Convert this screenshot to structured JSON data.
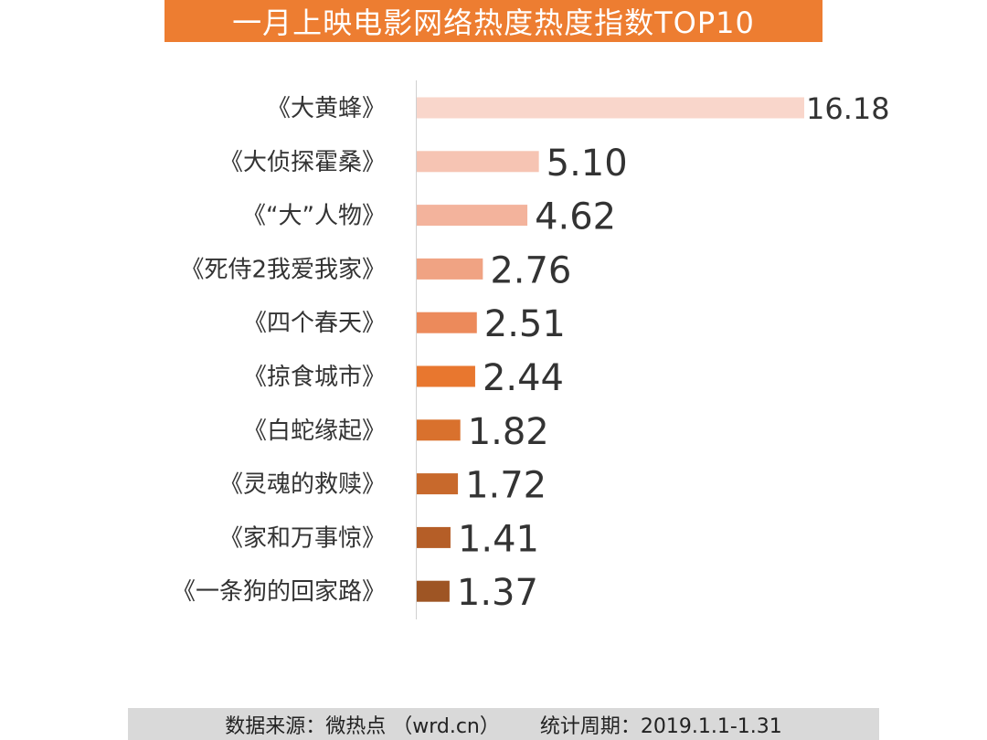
{
  "title": "一月上映电影网络热度热度指数TOP10",
  "footer": {
    "source": "数据来源：微热点 （wrd.cn）",
    "period": "统计周期：2019.1.1-1.31"
  },
  "colors": {
    "banner": "#ED7D31",
    "footer_bg": "#D9D9D9",
    "bars": [
      "#F9D6CB",
      "#F6C4B3",
      "#F3B39C",
      "#F0A383",
      "#EC8A5B",
      "#E8772F",
      "#D9712D",
      "#C8692C",
      "#B55E27",
      "#9E5524"
    ]
  },
  "chart_data": {
    "type": "bar",
    "orientation": "horizontal",
    "categories": [
      "《大黄蜂》",
      "《大侦探霍桑》",
      "《“大”人物》",
      "《死侍2我爱我家》",
      "《四个春天》",
      "《掠食城市》",
      "《白蛇缘起》",
      "《灵魂的救赎》",
      "《家和万事惊》",
      "《一条狗的回家路》"
    ],
    "values": [
      16.18,
      5.1,
      4.62,
      2.76,
      2.51,
      2.44,
      1.82,
      1.72,
      1.41,
      1.37
    ],
    "value_labels": [
      "16.18",
      "5.10",
      "4.62",
      "2.76",
      "2.51",
      "2.44",
      "1.82",
      "1.72",
      "1.41",
      "1.37"
    ],
    "xlim": [
      0,
      16.18
    ],
    "grid": false,
    "legend": "none"
  }
}
